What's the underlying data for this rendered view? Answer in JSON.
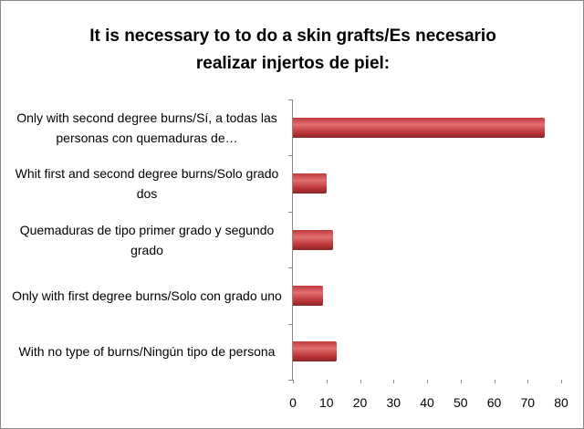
{
  "chart_data": {
    "type": "bar",
    "orientation": "horizontal",
    "title": "It is necessary to to do a skin grafts/Es necesario realizar injertos de piel:",
    "categories": [
      "Only with second degree burns/Sí, a todas las personas con quemaduras de…",
      "Whit first and second degree burns/Solo grado dos",
      "Quemaduras de tipo primer grado y segundo grado",
      "Only with first degree burns/Solo con grado uno",
      "With no type of burns/Ningún tipo de persona"
    ],
    "values": [
      75,
      10,
      12,
      9,
      13
    ],
    "color": "#c0393b",
    "xlim": [
      0,
      80
    ],
    "xticks": [
      0,
      10,
      20,
      30,
      40,
      50,
      60,
      70,
      80
    ],
    "grid": false
  }
}
